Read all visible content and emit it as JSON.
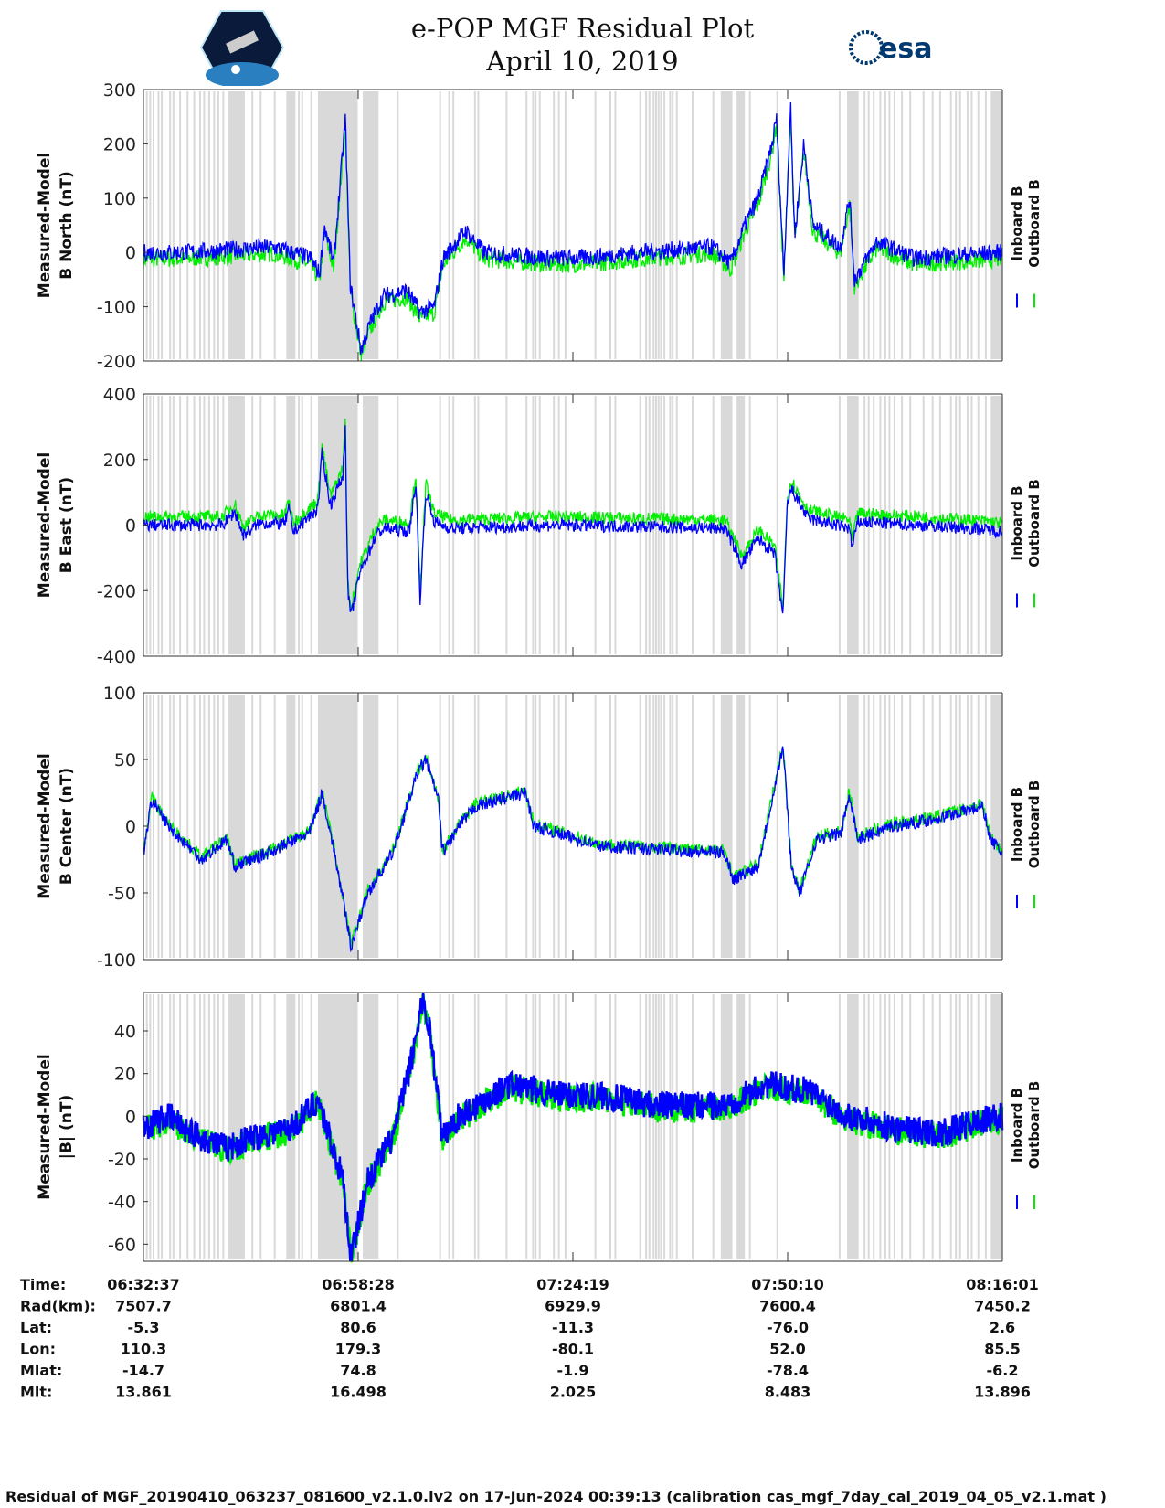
{
  "header": {
    "title": "e-POP MGF Residual Plot",
    "date": "April 10, 2019",
    "left_logo": "e-POP CASSIOPE",
    "right_logo": "esa"
  },
  "footer": "Residual of MGF_20190410_063237_081600_v2.1.0.lv2 on 17-Jun-2024 00:39:13 (calibration cas_mgf_7day_cal_2019_04_05_v2.1.mat )",
  "colors": {
    "inboard": "#0000ff",
    "outboard": "#00ee00",
    "gap": "#d9d9d9"
  },
  "chart_data": {
    "type": "line",
    "x_unit": "minutes since 06:32:37",
    "xlim": [
      0,
      103.4
    ],
    "legend": [
      {
        "name": "Inboard B",
        "color": "#0000ff"
      },
      {
        "name": "Outboard B",
        "color": "#00ee00"
      }
    ],
    "orbit_table": {
      "row_labels": [
        "Time:",
        "Rad(km):",
        "Lat:",
        "Lon:",
        "Mlat:",
        "Mlt:"
      ],
      "columns": [
        [
          "06:32:37",
          "7507.7",
          "-5.3",
          "110.3",
          "-14.7",
          "13.861"
        ],
        [
          "06:58:28",
          "6801.4",
          "80.6",
          "179.3",
          "74.8",
          "16.498"
        ],
        [
          "07:24:19",
          "6929.9",
          "-11.3",
          "-80.1",
          "-1.9",
          "2.025"
        ],
        [
          "07:50:10",
          "7600.4",
          "-76.0",
          "52.0",
          "-78.4",
          "8.483"
        ],
        [
          "08:16:01",
          "7450.2",
          "2.6",
          "85.5",
          "-6.2",
          "13.896"
        ]
      ]
    },
    "gap_bands": [
      [
        10.2,
        12.2
      ],
      [
        17.2,
        18.3
      ],
      [
        21.0,
        25.8
      ],
      [
        26.4,
        28.3
      ],
      [
        69.5,
        70.9
      ],
      [
        71.6,
        72.4
      ],
      [
        84.7,
        86.1
      ],
      [
        102.0,
        103.4
      ]
    ],
    "gap_lines": [
      0.3,
      0.7,
      1.1,
      1.7,
      2.1,
      3.1,
      3.5,
      4.3,
      5.2,
      6.0,
      6.7,
      7.2,
      7.8,
      8.4,
      8.9,
      9.5,
      13.0,
      14.0,
      15.7,
      18.6,
      19.0,
      20.1,
      30.5,
      35.6,
      36.7,
      37.2,
      39.8,
      40.2,
      43.6,
      46.0,
      46.8,
      47.1,
      47.6,
      49.3,
      49.9,
      50.7,
      54.3,
      56.1,
      56.7,
      59.7,
      60.4,
      60.8,
      61.3,
      61.6,
      61.9,
      62.2,
      62.6,
      63.3,
      63.6,
      64.1,
      66.0,
      68.5,
      71.4,
      72.9,
      76.2,
      83.7,
      86.7,
      87.2,
      87.8,
      88.6,
      89.2,
      89.7,
      90.3,
      91.2,
      92.2,
      93.8,
      94.9,
      95.8,
      97.1,
      97.7,
      98.2,
      99.1,
      99.6,
      100.4,
      101.3
    ],
    "panels": [
      {
        "ylabel": [
          "Measured-Model",
          "B North (nT)"
        ],
        "ylim": [
          -200,
          300
        ],
        "yticks": [
          300,
          200,
          100,
          0,
          -100,
          -200
        ],
        "noise": 8,
        "outboard_offset": -6,
        "inboard": [
          [
            0,
            0
          ],
          [
            4.7,
            0
          ],
          [
            15.7,
            10
          ],
          [
            20.1,
            -10
          ],
          [
            21.2,
            -40
          ],
          [
            21.8,
            50
          ],
          [
            22.9,
            -20
          ],
          [
            24.3,
            245
          ],
          [
            24.9,
            -60
          ],
          [
            26.2,
            -180
          ],
          [
            27.3,
            -130
          ],
          [
            28.9,
            -80
          ],
          [
            31.7,
            -70
          ],
          [
            33.3,
            -110
          ],
          [
            35.0,
            -100
          ],
          [
            36.1,
            -10
          ],
          [
            38.8,
            40
          ],
          [
            41.0,
            0
          ],
          [
            48.7,
            -10
          ],
          [
            53.1,
            -10
          ],
          [
            59.7,
            0
          ],
          [
            68.5,
            10
          ],
          [
            70.7,
            -20
          ],
          [
            72.4,
            50
          ],
          [
            74.0,
            100
          ],
          [
            75.7,
            200
          ],
          [
            76.2,
            250
          ],
          [
            77.1,
            -40
          ],
          [
            77.9,
            270
          ],
          [
            78.4,
            30
          ],
          [
            79.5,
            200
          ],
          [
            80.6,
            50
          ],
          [
            83.9,
            10
          ],
          [
            85.0,
            100
          ],
          [
            85.6,
            -50
          ],
          [
            88.3,
            20
          ],
          [
            92.7,
            -10
          ],
          [
            103.4,
            0
          ]
        ]
      },
      {
        "ylabel": [
          "Measured-Model",
          "B East (nT)"
        ],
        "ylim": [
          -400,
          400
        ],
        "yticks": [
          400,
          200,
          0,
          -200,
          -400
        ],
        "noise": 6,
        "outboard_offset": 8,
        "inboard": [
          [
            0,
            0
          ],
          [
            9.5,
            0
          ],
          [
            11,
            40
          ],
          [
            12,
            -30
          ],
          [
            14,
            5
          ],
          [
            17,
            5
          ],
          [
            17.5,
            50
          ],
          [
            18,
            -20
          ],
          [
            21,
            50
          ],
          [
            21.5,
            220
          ],
          [
            22.5,
            60
          ],
          [
            24,
            150
          ],
          [
            24.3,
            300
          ],
          [
            24.6,
            -200
          ],
          [
            25,
            -280
          ],
          [
            26,
            -150
          ],
          [
            27,
            -90
          ],
          [
            28,
            -30
          ],
          [
            29,
            -10
          ],
          [
            32,
            -20
          ],
          [
            32.8,
            130
          ],
          [
            33.3,
            -230
          ],
          [
            34,
            100
          ],
          [
            35,
            10
          ],
          [
            37,
            -10
          ],
          [
            50,
            0
          ],
          [
            70,
            -10
          ],
          [
            71,
            -60
          ],
          [
            72,
            -120
          ],
          [
            74,
            -40
          ],
          [
            76,
            -90
          ],
          [
            77,
            -280
          ],
          [
            77.5,
            60
          ],
          [
            78,
            110
          ],
          [
            80,
            20
          ],
          [
            85,
            -10
          ],
          [
            85.3,
            -70
          ],
          [
            86,
            10
          ],
          [
            100,
            -10
          ],
          [
            103.4,
            -20
          ]
        ]
      },
      {
        "ylabel": [
          "Measured-Model",
          "B Center (nT)"
        ],
        "ylim": [
          -100,
          100
        ],
        "yticks": [
          100,
          50,
          0,
          -50,
          -100
        ],
        "noise": 6,
        "outboard_offset": 2,
        "inboard": [
          [
            0,
            -20
          ],
          [
            1,
            20
          ],
          [
            3,
            0
          ],
          [
            7,
            -25
          ],
          [
            10,
            -10
          ],
          [
            11,
            -30
          ],
          [
            15,
            -20
          ],
          [
            20,
            -5
          ],
          [
            21.5,
            25
          ],
          [
            23,
            -20
          ],
          [
            25,
            -90
          ],
          [
            27,
            -50
          ],
          [
            30,
            -20
          ],
          [
            33,
            40
          ],
          [
            34,
            50
          ],
          [
            35.5,
            20
          ],
          [
            36,
            -20
          ],
          [
            38,
            0
          ],
          [
            40,
            15
          ],
          [
            46,
            25
          ],
          [
            47,
            0
          ],
          [
            55,
            -15
          ],
          [
            70,
            -20
          ],
          [
            71,
            -40
          ],
          [
            74,
            -30
          ],
          [
            77,
            60
          ],
          [
            78,
            -30
          ],
          [
            79,
            -50
          ],
          [
            81,
            -10
          ],
          [
            84,
            -5
          ],
          [
            85,
            25
          ],
          [
            86,
            -10
          ],
          [
            90,
            0
          ],
          [
            95,
            5
          ],
          [
            101,
            15
          ],
          [
            102,
            -10
          ],
          [
            103.4,
            -20
          ]
        ]
      },
      {
        "ylabel": [
          "Measured-Model",
          "|B| (nT)"
        ],
        "ylim": [
          -68,
          58
        ],
        "yticks": [
          40,
          20,
          0,
          -20,
          -40,
          -60
        ],
        "noise": 6,
        "outboard_offset": -3,
        "inboard": [
          [
            0,
            -5
          ],
          [
            3,
            0
          ],
          [
            6,
            -8
          ],
          [
            10,
            -15
          ],
          [
            13,
            -10
          ],
          [
            18,
            -5
          ],
          [
            21,
            8
          ],
          [
            24,
            -30
          ],
          [
            25,
            -66
          ],
          [
            27,
            -30
          ],
          [
            30,
            -10
          ],
          [
            32.5,
            30
          ],
          [
            33.5,
            55
          ],
          [
            34.5,
            40
          ],
          [
            36,
            -10
          ],
          [
            38,
            0
          ],
          [
            44,
            15
          ],
          [
            50,
            10
          ],
          [
            55,
            10
          ],
          [
            62,
            5
          ],
          [
            70,
            5
          ],
          [
            75,
            15
          ],
          [
            80,
            12
          ],
          [
            85,
            0
          ],
          [
            90,
            -5
          ],
          [
            96,
            -8
          ],
          [
            100,
            -3
          ],
          [
            103.4,
            0
          ]
        ]
      }
    ]
  }
}
